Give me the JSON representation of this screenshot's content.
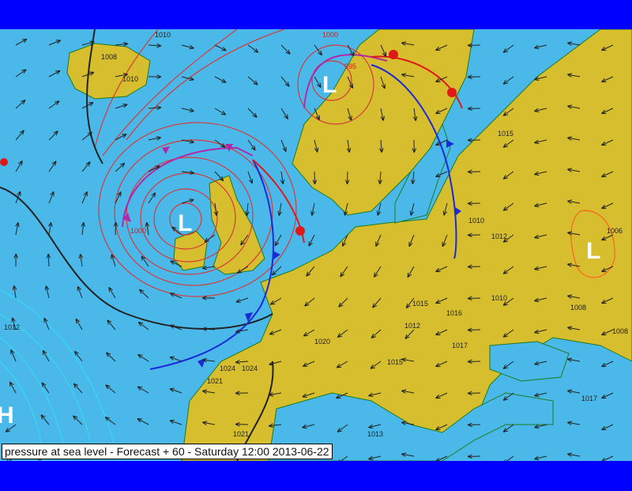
{
  "caption": "pressure at sea level - Forecast + 60 - Saturday 12:00 2013-06-22",
  "colors": {
    "frame": "#0000ff",
    "sea": "#4ab9ea",
    "land": "#d7be2e",
    "isobar_low": "#d63a3a",
    "isobar_high": "#2ee0f0",
    "isobar_main": "#222222",
    "cold_front": "#1a2ad8",
    "warm_front": "#e01818",
    "occluded_front": "#b02aa8"
  },
  "pressure_systems": [
    {
      "type": "L",
      "label": "L",
      "value": "995"
    },
    {
      "type": "L",
      "label": "L",
      "value": ""
    },
    {
      "type": "L",
      "label": "L",
      "value": "1006"
    },
    {
      "type": "H",
      "label": "H",
      "value": ""
    }
  ],
  "isobar_labels": [
    "1010",
    "1008",
    "1010",
    "1000",
    "1000",
    "1015",
    "1010",
    "1012",
    "1010",
    "1008",
    "1008",
    "1024",
    "1024",
    "1021",
    "1020",
    "1015",
    "1012",
    "1016",
    "1017",
    "1015",
    "1013",
    "1021",
    "1012",
    "1017"
  ]
}
